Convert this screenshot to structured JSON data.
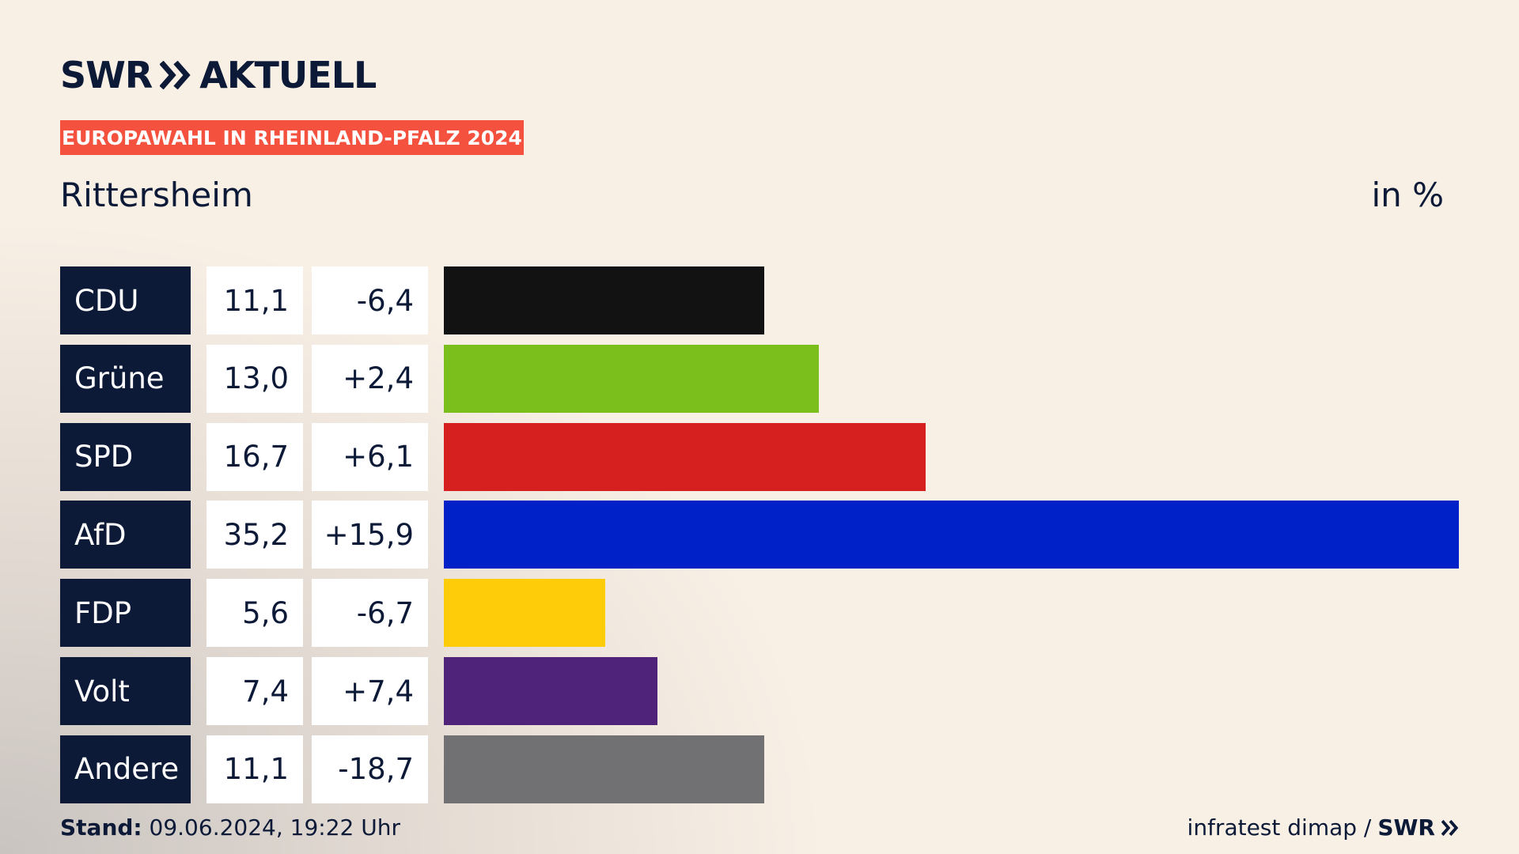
{
  "chart_data": {
    "type": "bar",
    "brand": "SWR",
    "brand_sub": "AKTUELL",
    "banner": "EUROPAWAHL IN RHEINLAND-PFALZ 2024",
    "title": "Rittersheim",
    "unit": "in %",
    "categories": [
      "CDU",
      "Grüne",
      "SPD",
      "AfD",
      "FDP",
      "Volt",
      "Andere"
    ],
    "values": [
      11.1,
      13.0,
      16.7,
      35.2,
      5.6,
      7.4,
      11.1
    ],
    "value_labels": [
      "11,1",
      "13,0",
      "16,7",
      "35,2",
      "5,6",
      "7,4",
      "11,1"
    ],
    "changes": [
      {
        "value": -6.4,
        "label": "-6,4"
      },
      {
        "value": 2.4,
        "label": "+2,4"
      },
      {
        "value": 6.1,
        "label": "+6,1"
      },
      {
        "value": 15.9,
        "label": "+15,9"
      },
      {
        "value": -6.7,
        "label": "-6,7"
      },
      {
        "value": 7.4,
        "label": "+7,4"
      },
      {
        "value": -18.7,
        "label": "-18,7"
      }
    ],
    "colors": [
      "#121212",
      "#7abf1c",
      "#d61f1f",
      "#0020c8",
      "#ffcc0a",
      "#50237a",
      "#717173"
    ],
    "footer_label": "Stand:",
    "footer_date": "09.06.2024, 19:22 Uhr",
    "source": "infratest dimap /",
    "source_brand": "SWR"
  }
}
